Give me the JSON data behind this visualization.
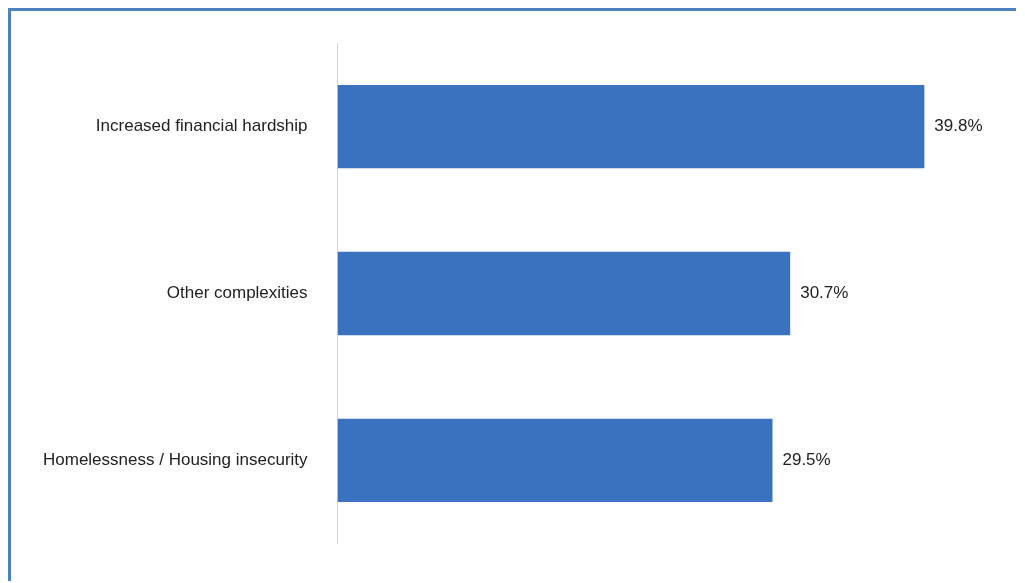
{
  "chart_data": {
    "type": "bar",
    "orientation": "horizontal",
    "categories": [
      "Increased financial hardship",
      "Other complexities",
      "Homelessness / Housing insecurity"
    ],
    "values": [
      39.8,
      30.7,
      29.5
    ],
    "value_labels": [
      "39.8%",
      "30.7%",
      "29.5%"
    ],
    "color": "#3a72c0",
    "grid": false,
    "legend": false,
    "tick_labels": "y"
  }
}
